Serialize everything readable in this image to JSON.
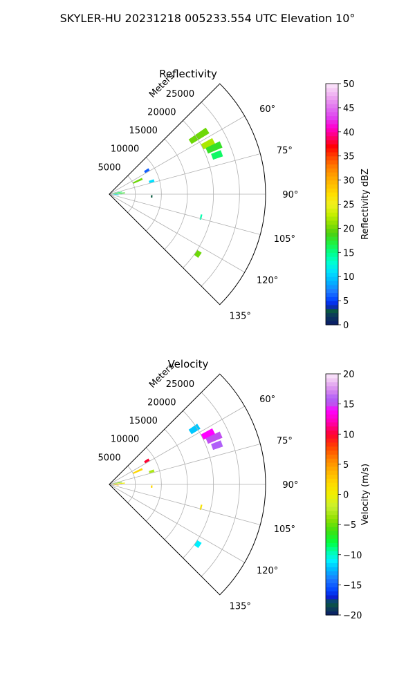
{
  "suptitle": "SKYLER-HU  20231218  005233.554 UTC Elevation 10°",
  "range_unit_label": "Meters",
  "chart_data": [
    {
      "type": "polar-sector-ppi",
      "title": "Reflectivity",
      "azimuth_range_deg": [
        45,
        135
      ],
      "azimuth_ticks": [
        {
          "value": 60,
          "label": "60°"
        },
        {
          "value": 75,
          "label": "75°"
        },
        {
          "value": 90,
          "label": "90°"
        },
        {
          "value": 105,
          "label": "105°"
        },
        {
          "value": 120,
          "label": "120°"
        },
        {
          "value": 135,
          "label": "135°"
        }
      ],
      "range_max_m": 30000,
      "range_ticks": [
        {
          "value": 5000,
          "label": "5000"
        },
        {
          "value": 10000,
          "label": "10000"
        },
        {
          "value": 15000,
          "label": "15000"
        },
        {
          "value": 20000,
          "label": "20000"
        },
        {
          "value": 25000,
          "label": "25000"
        }
      ],
      "grid": true,
      "colorbar": {
        "label": "Reflectivity dBZ",
        "min": 0,
        "max": 50,
        "ticks": [
          {
            "value": 0,
            "label": "0"
          },
          {
            "value": 5,
            "label": "5"
          },
          {
            "value": 10,
            "label": "10"
          },
          {
            "value": 15,
            "label": "15"
          },
          {
            "value": 20,
            "label": "20"
          },
          {
            "value": 25,
            "label": "25"
          },
          {
            "value": 30,
            "label": "30"
          },
          {
            "value": 35,
            "label": "35"
          },
          {
            "value": 40,
            "label": "40"
          },
          {
            "value": 45,
            "label": "45"
          },
          {
            "value": 50,
            "label": "50"
          }
        ]
      },
      "echoes": [
        {
          "az": 57,
          "r_start": 18500,
          "r_end": 22500,
          "value": 20
        },
        {
          "az": 63,
          "r_start": 20000,
          "r_end": 22500,
          "value": 22
        },
        {
          "az": 66,
          "r_start": 20500,
          "r_end": 23500,
          "value": 18
        },
        {
          "az": 70,
          "r_start": 21000,
          "r_end": 23000,
          "value": 16
        },
        {
          "az": 58,
          "r_start": 8000,
          "r_end": 9000,
          "value": 6
        },
        {
          "az": 65,
          "r_start": 5000,
          "r_end": 7000,
          "value": 20
        },
        {
          "az": 73,
          "r_start": 8000,
          "r_end": 9000,
          "value": 11
        },
        {
          "az": 75,
          "r_start": 600,
          "r_end": 2000,
          "value": 12
        },
        {
          "az": 80,
          "r_start": 600,
          "r_end": 2500,
          "value": 16
        },
        {
          "az": 85,
          "r_start": 600,
          "r_end": 3000,
          "value": 18
        },
        {
          "az": 90,
          "r_start": 600,
          "r_end": 2500,
          "value": 14
        },
        {
          "az": 95,
          "r_start": 600,
          "r_end": 1800,
          "value": 11
        },
        {
          "az": 93,
          "r_start": 8000,
          "r_end": 8300,
          "value": 3
        },
        {
          "az": 104,
          "r_start": 18000,
          "r_end": 18300,
          "value": 14
        },
        {
          "az": 124,
          "r_start": 20000,
          "r_end": 21000,
          "value": 20
        }
      ]
    },
    {
      "type": "polar-sector-ppi",
      "title": "Velocity",
      "azimuth_range_deg": [
        45,
        135
      ],
      "azimuth_ticks": [
        {
          "value": 60,
          "label": "60°"
        },
        {
          "value": 75,
          "label": "75°"
        },
        {
          "value": 90,
          "label": "90°"
        },
        {
          "value": 105,
          "label": "105°"
        },
        {
          "value": 120,
          "label": "120°"
        },
        {
          "value": 135,
          "label": "135°"
        }
      ],
      "range_max_m": 30000,
      "range_ticks": [
        {
          "value": 5000,
          "label": "5000"
        },
        {
          "value": 10000,
          "label": "10000"
        },
        {
          "value": 15000,
          "label": "15000"
        },
        {
          "value": 20000,
          "label": "20000"
        },
        {
          "value": 25000,
          "label": "25000"
        }
      ],
      "grid": true,
      "colorbar": {
        "label": "Velocity (m/s)",
        "min": -20,
        "max": 20,
        "ticks": [
          {
            "value": -20,
            "label": "−20"
          },
          {
            "value": -15,
            "label": "−15"
          },
          {
            "value": -10,
            "label": "−10"
          },
          {
            "value": -5,
            "label": "−5"
          },
          {
            "value": 0,
            "label": "0"
          },
          {
            "value": 5,
            "label": "5"
          },
          {
            "value": 10,
            "label": "10"
          },
          {
            "value": 15,
            "label": "15"
          },
          {
            "value": 20,
            "label": "20"
          }
        ]
      },
      "echoes": [
        {
          "az": 57,
          "r_start": 18500,
          "r_end": 20500,
          "value": -12
        },
        {
          "az": 63,
          "r_start": 20000,
          "r_end": 22500,
          "value": 14
        },
        {
          "az": 66,
          "r_start": 20500,
          "r_end": 23500,
          "value": 15
        },
        {
          "az": 70,
          "r_start": 21000,
          "r_end": 23000,
          "value": 16
        },
        {
          "az": 58,
          "r_start": 8000,
          "r_end": 9000,
          "value": 10
        },
        {
          "az": 65,
          "r_start": 5000,
          "r_end": 7000,
          "value": 2
        },
        {
          "az": 73,
          "r_start": 8000,
          "r_end": 9000,
          "value": -3
        },
        {
          "az": 75,
          "r_start": 600,
          "r_end": 2000,
          "value": 1
        },
        {
          "az": 80,
          "r_start": 600,
          "r_end": 2500,
          "value": -5
        },
        {
          "az": 85,
          "r_start": 600,
          "r_end": 3000,
          "value": 0
        },
        {
          "az": 90,
          "r_start": 600,
          "r_end": 2500,
          "value": 15
        },
        {
          "az": 95,
          "r_start": 600,
          "r_end": 1800,
          "value": 3
        },
        {
          "az": 93,
          "r_start": 8000,
          "r_end": 8300,
          "value": 2
        },
        {
          "az": 104,
          "r_start": 18000,
          "r_end": 18300,
          "value": 1
        },
        {
          "az": 124,
          "r_start": 20000,
          "r_end": 21000,
          "value": -11
        }
      ]
    }
  ]
}
